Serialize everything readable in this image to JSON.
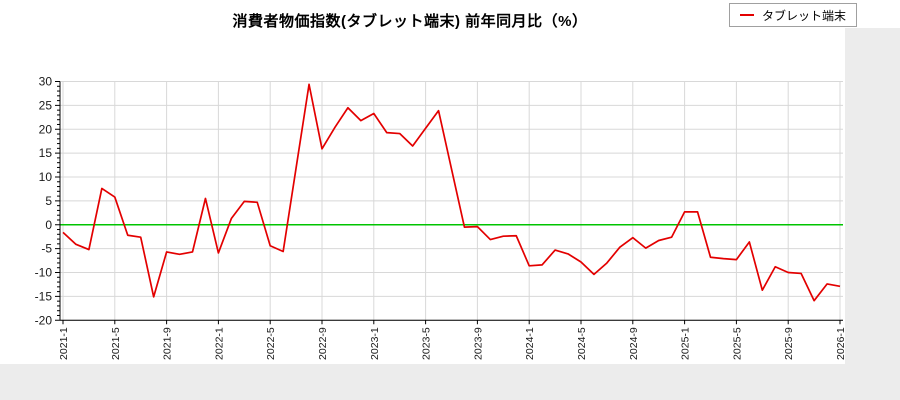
{
  "title": "消費者物価指数(タブレット端末) 前年同月比（%）",
  "legend": {
    "label": "タブレット端末"
  },
  "colors": {
    "series_line": "#e30000",
    "zero_line": "#00c400",
    "gridline": "#d8d8d8",
    "axis": "#000000",
    "tick_label": "#1a1a1a",
    "margin_gray": "#ececec"
  },
  "chart_data": {
    "type": "line",
    "title": "消費者物価指数(タブレット端末) 前年同月比（%）",
    "x_start_month": "2021-1",
    "x_end_month": "2026-1",
    "x_tick_labels": [
      "2021-1",
      "2021-5",
      "2021-9",
      "2022-1",
      "2022-5",
      "2022-9",
      "2023-1",
      "2023-5",
      "2023-9",
      "2024-1",
      "2024-5",
      "2024-9",
      "2025-1",
      "2025-5",
      "2025-9",
      "2026-1"
    ],
    "y_tick_labels": [
      "30",
      "25",
      "20",
      "15",
      "10",
      "5",
      "0",
      "-5",
      "-10",
      "-15",
      "-20"
    ],
    "ylim": [
      -20,
      30
    ],
    "grid": true,
    "zero_line": true,
    "legend_position": "top-right",
    "series": [
      {
        "name": "タブレット端末",
        "months": [
          "2021-1",
          "2021-2",
          "2021-3",
          "2021-4",
          "2021-5",
          "2021-6",
          "2021-7",
          "2021-8",
          "2021-9",
          "2021-10",
          "2021-11",
          "2021-12",
          "2022-1",
          "2022-2",
          "2022-3",
          "2022-4",
          "2022-5",
          "2022-6",
          "2022-7",
          "2022-8",
          "2022-9",
          "2022-10",
          "2022-11",
          "2022-12",
          "2023-1",
          "2023-2",
          "2023-3",
          "2023-4",
          "2023-5",
          "2023-6",
          "2023-7",
          "2023-8",
          "2023-9",
          "2023-10",
          "2023-11",
          "2023-12",
          "2024-1",
          "2024-2",
          "2024-3",
          "2024-4",
          "2024-5",
          "2024-6",
          "2024-7",
          "2024-8",
          "2024-9",
          "2024-10",
          "2024-11",
          "2024-12",
          "2025-1",
          "2025-2",
          "2025-3",
          "2025-4",
          "2025-5",
          "2025-6",
          "2025-7",
          "2025-8",
          "2025-9",
          "2025-10",
          "2025-11",
          "2025-12",
          "2026-1"
        ],
        "values": [
          -1.6,
          -4.1,
          -5.2,
          7.6,
          5.8,
          -2.2,
          -2.6,
          -15.1,
          -5.7,
          -6.2,
          -5.7,
          5.5,
          -5.9,
          1.3,
          4.9,
          4.7,
          -4.4,
          -5.6,
          11.9,
          29.4,
          15.9,
          20.4,
          24.5,
          21.8,
          23.3,
          19.3,
          19.1,
          16.5,
          20.2,
          23.9,
          11.7,
          -0.5,
          -0.4,
          -3.1,
          -2.4,
          -2.3,
          -8.6,
          -8.4,
          -5.3,
          -6.1,
          -7.8,
          -10.4,
          -8.0,
          -4.7,
          -2.7,
          -4.9,
          -3.3,
          -2.6,
          2.7,
          2.7,
          -6.8,
          -7.1,
          -7.3,
          -3.6,
          -13.7,
          -8.8,
          -10.0,
          -10.2,
          -15.9,
          -12.4,
          -12.9
        ]
      }
    ]
  }
}
